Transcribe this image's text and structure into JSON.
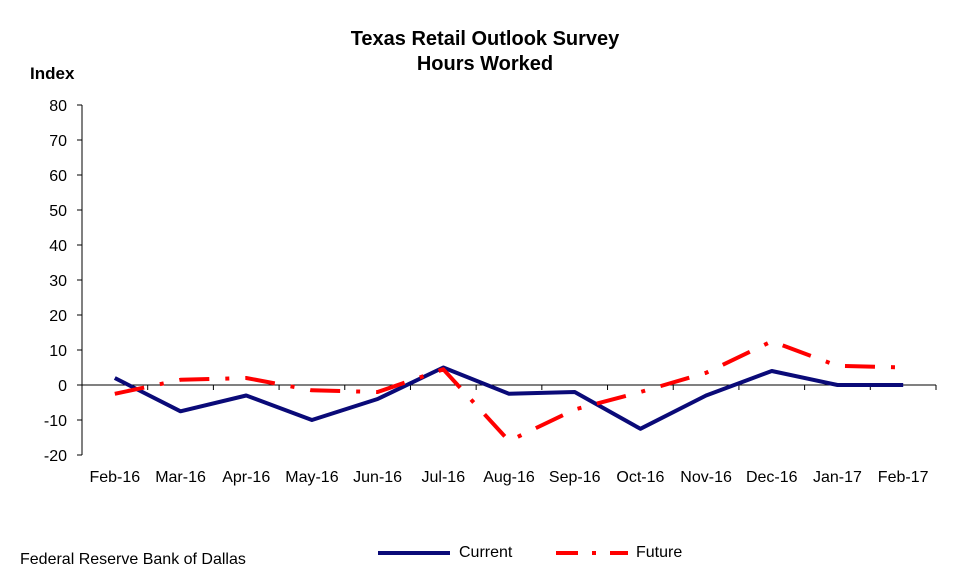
{
  "chart_data": {
    "type": "line",
    "title": "Texas Retail Outlook Survey",
    "subtitle": "Hours Worked",
    "ylabel": "Index",
    "xlabel": "",
    "ylim": [
      -20,
      80
    ],
    "yticks": [
      80,
      70,
      60,
      50,
      40,
      30,
      20,
      10,
      0,
      -10,
      -20
    ],
    "categories": [
      "Feb-16",
      "Mar-16",
      "Apr-16",
      "May-16",
      "Jun-16",
      "Jul-16",
      "Aug-16",
      "Sep-16",
      "Oct-16",
      "Nov-16",
      "Dec-16",
      "Jan-17",
      "Feb-17"
    ],
    "series": [
      {
        "name": "Current",
        "color": "#0a0a78",
        "style": "solid",
        "values": [
          2,
          -7.5,
          -3,
          -10,
          -4,
          5,
          -2.5,
          -2,
          -12.5,
          -3,
          4,
          0,
          0
        ]
      },
      {
        "name": "Future",
        "color": "#ff0000",
        "style": "dash-dot",
        "values": [
          -2.5,
          1.5,
          2,
          -1.5,
          -2,
          4.5,
          -16,
          -7,
          -2,
          3.5,
          12.5,
          5.5,
          5
        ]
      }
    ],
    "grid": false,
    "legend_position": "bottom"
  },
  "source": "Federal Reserve Bank of Dallas"
}
